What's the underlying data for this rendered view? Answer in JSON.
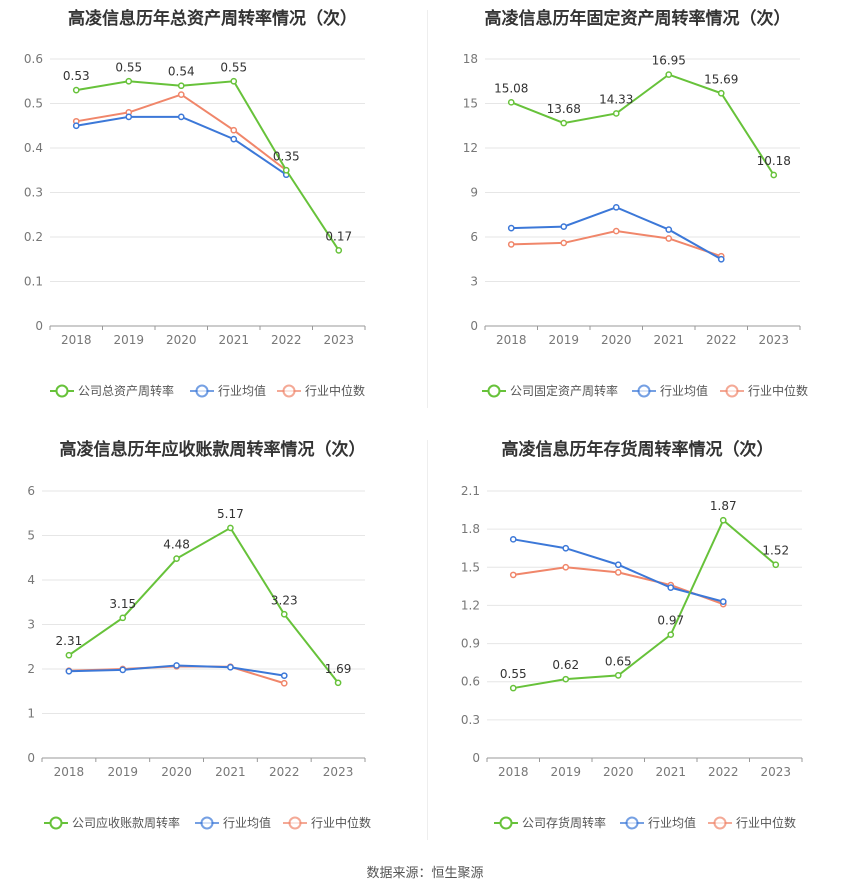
{
  "colors": {
    "company": "#67c23a",
    "avg": "#3c78d8",
    "median": "#f0866a",
    "grid": "#e6e6e6",
    "axis": "#999999",
    "text": "#333333"
  },
  "legend": {
    "avg_label": "行业均值",
    "median_label": "行业中位数"
  },
  "source": "数据来源：恒生聚源",
  "chart_data": [
    {
      "type": "line",
      "title": "高凌信息历年总资产周转率情况（次）",
      "categories": [
        "2018",
        "2019",
        "2020",
        "2021",
        "2022",
        "2023"
      ],
      "ylim": [
        0,
        0.6
      ],
      "yticks": [
        "0",
        "0.1",
        "0.2",
        "0.3",
        "0.4",
        "0.5",
        "0.6"
      ],
      "series": [
        {
          "name": "公司总资产周转率",
          "role": "company",
          "values": [
            0.53,
            0.55,
            0.54,
            0.55,
            0.35,
            0.17
          ],
          "labels": [
            "0.53",
            "0.55",
            "0.54",
            "0.55",
            "0.35",
            "0.17"
          ]
        },
        {
          "name": "行业均值",
          "role": "avg",
          "values": [
            0.45,
            0.47,
            0.47,
            0.42,
            0.34,
            null
          ]
        },
        {
          "name": "行业中位数",
          "role": "median",
          "values": [
            0.46,
            0.48,
            0.52,
            0.44,
            0.35,
            null
          ]
        }
      ]
    },
    {
      "type": "line",
      "title": "高凌信息历年固定资产周转率情况（次）",
      "categories": [
        "2018",
        "2019",
        "2020",
        "2021",
        "2022",
        "2023"
      ],
      "ylim": [
        0,
        18
      ],
      "yticks": [
        "0",
        "3",
        "6",
        "9",
        "12",
        "15",
        "18"
      ],
      "series": [
        {
          "name": "公司固定资产周转率",
          "role": "company",
          "values": [
            15.08,
            13.68,
            14.33,
            16.95,
            15.69,
            10.18
          ],
          "labels": [
            "15.08",
            "13.68",
            "14.33",
            "16.95",
            "15.69",
            "10.18"
          ]
        },
        {
          "name": "行业均值",
          "role": "avg",
          "values": [
            6.6,
            6.7,
            8.0,
            6.5,
            4.5,
            null
          ]
        },
        {
          "name": "行业中位数",
          "role": "median",
          "values": [
            5.5,
            5.6,
            6.4,
            5.9,
            4.7,
            null
          ]
        }
      ]
    },
    {
      "type": "line",
      "title": "高凌信息历年应收账款周转率情况（次）",
      "categories": [
        "2018",
        "2019",
        "2020",
        "2021",
        "2022",
        "2023"
      ],
      "ylim": [
        0,
        6
      ],
      "yticks": [
        "0",
        "1",
        "2",
        "3",
        "4",
        "5",
        "6"
      ],
      "series": [
        {
          "name": "公司应收账款周转率",
          "role": "company",
          "values": [
            2.31,
            3.15,
            4.48,
            5.17,
            3.23,
            1.69
          ],
          "labels": [
            "2.31",
            "3.15",
            "4.48",
            "5.17",
            "3.23",
            "1.69"
          ]
        },
        {
          "name": "行业均值",
          "role": "avg",
          "values": [
            1.95,
            1.98,
            2.08,
            2.04,
            1.85,
            null
          ]
        },
        {
          "name": "行业中位数",
          "role": "median",
          "values": [
            1.96,
            2.0,
            2.06,
            2.05,
            1.68,
            null
          ]
        }
      ]
    },
    {
      "type": "line",
      "title": "高凌信息历年存货周转率情况（次）",
      "categories": [
        "2018",
        "2019",
        "2020",
        "2021",
        "2022",
        "2023"
      ],
      "ylim": [
        0,
        2.1
      ],
      "yticks": [
        "0",
        "0.3",
        "0.6",
        "0.9",
        "1.2",
        "1.5",
        "1.8",
        "2.1"
      ],
      "series": [
        {
          "name": "公司存货周转率",
          "role": "company",
          "values": [
            0.55,
            0.62,
            0.65,
            0.97,
            1.87,
            1.52
          ],
          "labels": [
            "0.55",
            "0.62",
            "0.65",
            "0.97",
            "1.87",
            "1.52"
          ]
        },
        {
          "name": "行业均值",
          "role": "avg",
          "values": [
            1.72,
            1.65,
            1.52,
            1.34,
            1.23,
            null
          ]
        },
        {
          "name": "行业中位数",
          "role": "median",
          "values": [
            1.44,
            1.5,
            1.46,
            1.36,
            1.21,
            null
          ]
        }
      ]
    }
  ]
}
